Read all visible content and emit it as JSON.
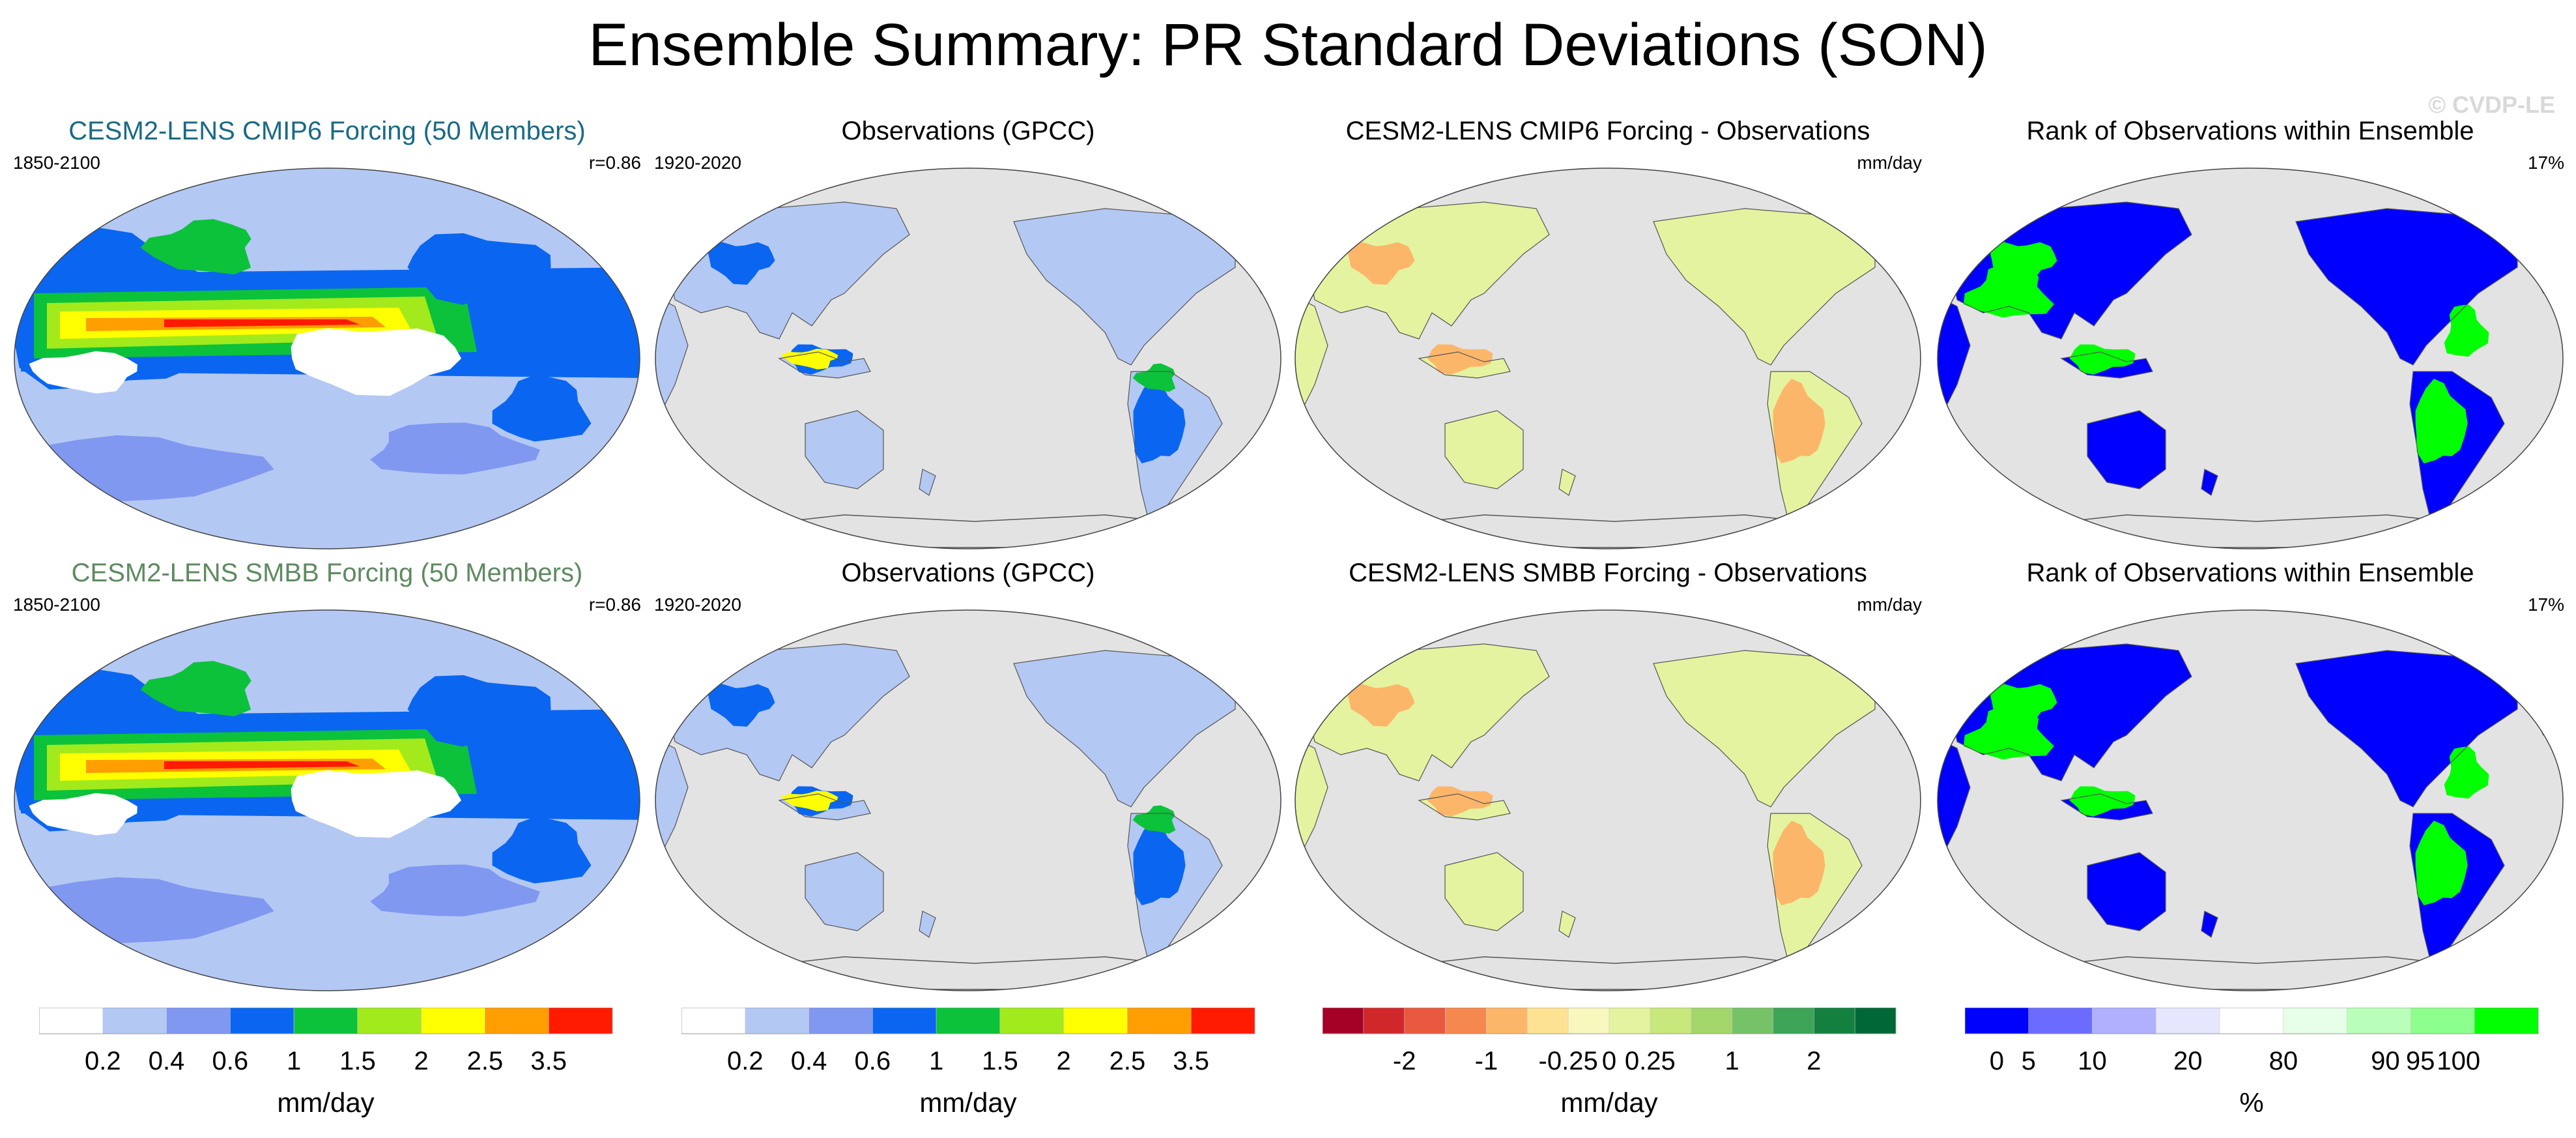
{
  "page_title": "Ensemble Summary: PR Standard Deviations (SON)",
  "watermark": "© CVDP-LE",
  "colors": {
    "ocean": "#e3e3e3",
    "coast": "#555555",
    "title_cmip6": "#1a6a85",
    "title_smbb": "#5f8a61",
    "std_scale": [
      "#ffffff",
      "#b4c8f4",
      "#8098f0",
      "#0a66f0",
      "#0cc23a",
      "#a2ea1c",
      "#ffff00",
      "#ff9e00",
      "#ff1a00"
    ],
    "diff_scale": [
      "#a50026",
      "#d0282a",
      "#e85940",
      "#f5884f",
      "#fcb66a",
      "#fee293",
      "#f8f7be",
      "#e4f39f",
      "#c8e77c",
      "#a2d66a",
      "#76c266",
      "#3da458",
      "#138040",
      "#006837"
    ],
    "rank_scale": [
      "#0000ff",
      "#6b6bff",
      "#b0b0ff",
      "#e6e6ff",
      "#ffffff",
      "#e6ffe6",
      "#b9ffb9",
      "#8cff8c",
      "#00ff00"
    ]
  },
  "panels": [
    {
      "title": "CESM2-LENS CMIP6 Forcing (50 Members)",
      "left": "1850-2100",
      "right": "r=0.86",
      "kind": "std_model",
      "title_color": "title_cmip6"
    },
    {
      "title": "Observations (GPCC)",
      "left": "1920-2020",
      "right": "",
      "kind": "std_obs",
      "title_color": ""
    },
    {
      "title": "CESM2-LENS CMIP6 Forcing - Observations",
      "left": "",
      "right": "mm/day",
      "kind": "diff",
      "title_color": ""
    },
    {
      "title": "Rank of Observations within Ensemble",
      "left": "",
      "right": "17%",
      "kind": "rank",
      "title_color": ""
    },
    {
      "title": "CESM2-LENS SMBB Forcing (50 Members)",
      "left": "1850-2100",
      "right": "r=0.86",
      "kind": "std_model",
      "title_color": "title_smbb"
    },
    {
      "title": "Observations (GPCC)",
      "left": "1920-2020",
      "right": "",
      "kind": "std_obs",
      "title_color": ""
    },
    {
      "title": "CESM2-LENS SMBB Forcing - Observations",
      "left": "",
      "right": "mm/day",
      "kind": "diff",
      "title_color": ""
    },
    {
      "title": "Rank of Observations within Ensemble",
      "left": "",
      "right": "17%",
      "kind": "rank",
      "title_color": ""
    }
  ],
  "colorbars": [
    {
      "label": "mm/day",
      "scale": "std_scale",
      "ticks": [
        "0.2",
        "0.4",
        "0.6",
        "1",
        "1.5",
        "2",
        "2.5",
        "3.5"
      ]
    },
    {
      "label": "mm/day",
      "scale": "std_scale",
      "ticks": [
        "0.2",
        "0.4",
        "0.6",
        "1",
        "1.5",
        "2",
        "2.5",
        "3.5"
      ]
    },
    {
      "label": "mm/day",
      "scale": "diff_scale",
      "ticks": [
        "-2",
        "-1",
        "-0.25",
        "0",
        "0.25",
        "1",
        "2"
      ],
      "tick_boundaries": [
        2,
        4,
        6,
        7,
        8,
        10,
        12
      ]
    },
    {
      "label": "%",
      "scale": "rank_scale",
      "ticks": [
        "0",
        "5",
        "10",
        "20",
        "80",
        "90",
        "95",
        "100"
      ],
      "tick_boundaries": [
        0.5,
        1,
        2,
        3.5,
        5,
        6.6,
        7.15,
        7.75
      ]
    }
  ]
}
